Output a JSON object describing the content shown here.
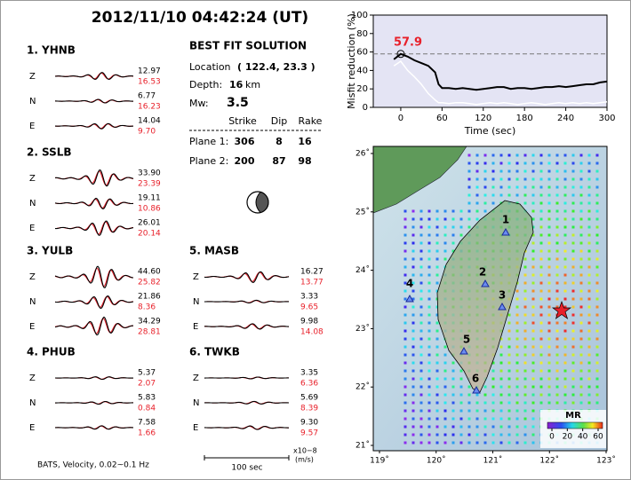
{
  "header": {
    "title": "2012/11/10  04:42:24 (UT)"
  },
  "stations": [
    {
      "label": "1.",
      "name": "YHNB",
      "components": [
        {
          "name": "Z",
          "black": "12.97",
          "red": "16.53"
        },
        {
          "name": "N",
          "black": "6.77",
          "red": "16.23"
        },
        {
          "name": "E",
          "black": "14.04",
          "red": "9.70"
        }
      ]
    },
    {
      "label": "2.",
      "name": "SSLB",
      "components": [
        {
          "name": "Z",
          "black": "33.90",
          "red": "23.39"
        },
        {
          "name": "N",
          "black": "19.11",
          "red": "10.86"
        },
        {
          "name": "E",
          "black": "26.01",
          "red": "20.14"
        }
      ]
    },
    {
      "label": "3.",
      "name": "YULB",
      "components": [
        {
          "name": "Z",
          "black": "44.60",
          "red": "25.82"
        },
        {
          "name": "N",
          "black": "21.86",
          "red": "8.36"
        },
        {
          "name": "E",
          "black": "34.29",
          "red": "28.81"
        }
      ]
    },
    {
      "label": "4.",
      "name": "PHUB",
      "components": [
        {
          "name": "Z",
          "black": "5.37",
          "red": "2.07"
        },
        {
          "name": "N",
          "black": "5.83",
          "red": "0.84"
        },
        {
          "name": "E",
          "black": "7.58",
          "red": "1.66"
        }
      ]
    },
    {
      "label": "5.",
      "name": "MASB",
      "components": [
        {
          "name": "Z",
          "black": "16.27",
          "red": "13.77"
        },
        {
          "name": "N",
          "black": "3.33",
          "red": "9.65"
        },
        {
          "name": "E",
          "black": "9.98",
          "red": "14.08"
        }
      ]
    },
    {
      "label": "6.",
      "name": "TWKB",
      "components": [
        {
          "name": "Z",
          "black": "3.35",
          "red": "6.36"
        },
        {
          "name": "N",
          "black": "5.69",
          "red": "8.39"
        },
        {
          "name": "E",
          "black": "9.30",
          "red": "9.57"
        }
      ]
    }
  ],
  "solution": {
    "title": "BEST FIT SOLUTION",
    "location_label": "Location",
    "location": "( 122.4,  23.3 )",
    "depth_label": "Depth:",
    "depth": "16",
    "depth_unit": "km",
    "mw_label": "Mw:",
    "mw": "3.5",
    "columns": [
      "Strike",
      "Dip",
      "Rake"
    ],
    "planes": [
      {
        "label": "Plane 1:",
        "values": [
          "306",
          "8",
          "16"
        ]
      },
      {
        "label": "Plane 2:",
        "values": [
          "200",
          "87",
          "98"
        ]
      }
    ]
  },
  "footer": {
    "note": "BATS, Velocity, 0.02~0.1 Hz",
    "scale": "100 sec",
    "unit_top": "x10−8",
    "unit_bottom": "(m/s)"
  },
  "map": {
    "xticks": [
      {
        "value": 119,
        "label": "119˚"
      },
      {
        "value": 120,
        "label": "120˚"
      },
      {
        "value": 121,
        "label": "121˚"
      },
      {
        "value": 122,
        "label": "122˚"
      },
      {
        "value": 123,
        "label": "123˚"
      }
    ],
    "yticks": [
      {
        "value": 21,
        "label": "21˚"
      },
      {
        "value": 22,
        "label": "22˚"
      },
      {
        "value": 23,
        "label": "23˚"
      },
      {
        "value": 24,
        "label": "24˚"
      },
      {
        "value": 25,
        "label": "25˚"
      },
      {
        "value": 26,
        "label": "26˚"
      }
    ],
    "stations": [
      "1",
      "2",
      "3",
      "4",
      "5",
      "6"
    ],
    "colorbar": {
      "label": "MR",
      "ticks": [
        0,
        20,
        40,
        60
      ]
    }
  },
  "chart_data": {
    "type": "line",
    "xlabel": "Time (sec)",
    "ylabel": "Misfit reduction (%)",
    "x": [
      -10,
      0,
      10,
      20,
      30,
      40,
      50,
      55,
      60,
      70,
      80,
      90,
      100,
      110,
      120,
      130,
      140,
      150,
      160,
      170,
      180,
      190,
      200,
      210,
      220,
      230,
      240,
      250,
      260,
      270,
      280,
      290,
      300
    ],
    "series": [
      {
        "color": "#000000",
        "values": [
          52,
          57.9,
          55,
          51,
          48,
          45,
          38,
          25,
          21,
          21,
          20,
          21,
          20,
          19,
          20,
          21,
          22,
          22,
          20,
          21,
          21,
          20,
          21,
          22,
          22,
          23,
          22,
          23,
          24,
          25,
          25,
          27,
          28
        ]
      },
      {
        "color": "#ffffff",
        "values": [
          45,
          50,
          40,
          33,
          25,
          15,
          8,
          5,
          5,
          4,
          5,
          5,
          4,
          3,
          4,
          5,
          4,
          5,
          4,
          3,
          4,
          5,
          4,
          3,
          4,
          5,
          4,
          5,
          4,
          5,
          4,
          5,
          6
        ]
      }
    ],
    "annotation": {
      "x": 0,
      "y": 57.9,
      "color": "#e8202a"
    },
    "xlim": [
      -40,
      300
    ],
    "ylim": [
      0,
      100
    ],
    "xticks": [
      0,
      60,
      120,
      180,
      240,
      300
    ],
    "yticks": [
      0,
      20,
      40,
      60,
      80,
      100
    ]
  }
}
